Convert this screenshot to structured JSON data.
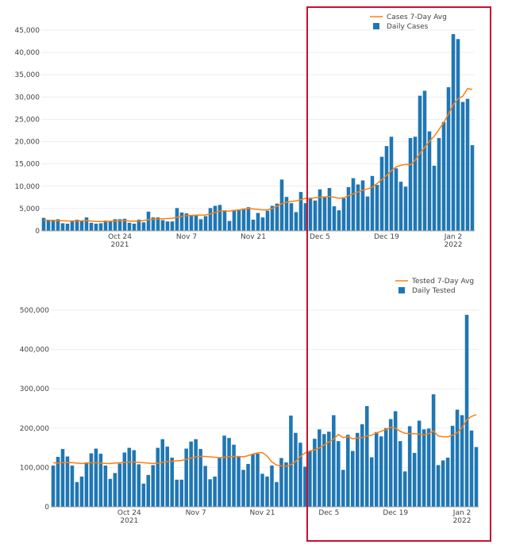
{
  "colors": {
    "bar": "#1f77b4",
    "line": "#ff7f0e",
    "highlight": "#c8102e"
  },
  "chart_data": [
    {
      "type": "bar",
      "x_ticks": [
        {
          "label": "Oct 24",
          "sub": "2021",
          "index": 16
        },
        {
          "label": "Nov 7",
          "sub": "",
          "index": 30
        },
        {
          "label": "Nov 21",
          "sub": "",
          "index": 44
        },
        {
          "label": "Dec 5",
          "sub": "",
          "index": 58
        },
        {
          "label": "Dec 19",
          "sub": "",
          "index": 72
        },
        {
          "label": "Jan 2",
          "sub": "2022",
          "index": 86
        }
      ],
      "y_ticks": [
        "0",
        "5,000",
        "10,000",
        "15,000",
        "20,000",
        "25,000",
        "30,000",
        "35,000",
        "40,000",
        "45,000"
      ],
      "ylim": [
        0,
        45000
      ],
      "legend": {
        "position": "top-right",
        "line_label": "Cases 7-Day Avg",
        "bar_label": "Daily Cases"
      },
      "series": [
        {
          "name": "Daily Cases",
          "kind": "bar",
          "values": [
            2900,
            2300,
            2400,
            2600,
            1700,
            1600,
            2300,
            2500,
            2200,
            3000,
            1800,
            1600,
            1700,
            2300,
            2100,
            2600,
            2600,
            2700,
            1800,
            1600,
            2500,
            1900,
            4300,
            3000,
            3000,
            2400,
            2100,
            2100,
            5100,
            4100,
            3900,
            3500,
            3500,
            2600,
            3300,
            5100,
            5600,
            5800,
            4600,
            2200,
            4700,
            4800,
            5000,
            5300,
            2500,
            4000,
            3000,
            4500,
            5600,
            6100,
            11500,
            7600,
            6200,
            4200,
            8700,
            6200,
            7400,
            6800,
            9300,
            7600,
            9600,
            5500,
            4600,
            7300,
            9800,
            11800,
            10400,
            11300,
            7700,
            12300,
            10300,
            16600,
            19000,
            21100,
            14000,
            11000,
            9900,
            20800,
            21100,
            30300,
            31400,
            22300,
            14600,
            20800,
            24400,
            32200,
            44100,
            43000,
            28900,
            29600,
            19200
          ]
        },
        {
          "name": "Cases 7-Day Avg",
          "kind": "line",
          "values": [
            2400,
            2350,
            2350,
            2300,
            2250,
            2200,
            2200,
            2250,
            2250,
            2300,
            2200,
            2100,
            2100,
            2100,
            2150,
            2200,
            2250,
            2300,
            2200,
            2150,
            2200,
            2300,
            2500,
            2600,
            2650,
            2700,
            2750,
            2800,
            3050,
            3250,
            3400,
            3450,
            3500,
            3500,
            3550,
            3800,
            4100,
            4400,
            4500,
            4400,
            4550,
            4700,
            4850,
            5000,
            4900,
            4800,
            4700,
            4700,
            5000,
            5500,
            6100,
            6400,
            6600,
            6700,
            7000,
            7300,
            7300,
            7400,
            7500,
            7600,
            7700,
            7500,
            7300,
            7400,
            7900,
            8300,
            8700,
            9100,
            9400,
            9800,
            10600,
            11500,
            12400,
            13500,
            14300,
            14700,
            14900,
            14800,
            15800,
            17400,
            18700,
            20100,
            21200,
            22700,
            24300,
            26200,
            28300,
            29600,
            30200,
            31900,
            31700
          ]
        }
      ]
    },
    {
      "type": "bar",
      "x_ticks": [
        {
          "label": "Oct 24",
          "sub": "2021",
          "index": 16
        },
        {
          "label": "Nov 7",
          "sub": "",
          "index": 30
        },
        {
          "label": "Nov 21",
          "sub": "",
          "index": 44
        },
        {
          "label": "Dec 5",
          "sub": "",
          "index": 58
        },
        {
          "label": "Dec 19",
          "sub": "",
          "index": 72
        },
        {
          "label": "Jan 2",
          "sub": "2022",
          "index": 86
        }
      ],
      "y_ticks": [
        "0",
        "100,000",
        "200,000",
        "300,000",
        "400,000",
        "500,000"
      ],
      "ylim": [
        0,
        500000
      ],
      "legend": {
        "position": "top-right",
        "line_label": "Tested 7-Day Avg",
        "bar_label": "Daily Tested"
      },
      "series": [
        {
          "name": "Daily Tested",
          "kind": "bar",
          "values": [
            105000,
            127000,
            147000,
            128000,
            105000,
            63000,
            77000,
            113000,
            136000,
            148000,
            135000,
            105000,
            71000,
            86000,
            110000,
            138000,
            150000,
            144000,
            108000,
            59000,
            81000,
            106000,
            150000,
            172000,
            153000,
            125000,
            69000,
            69000,
            148000,
            166000,
            172000,
            147000,
            104000,
            70000,
            77000,
            125000,
            181000,
            175000,
            158000,
            127000,
            94000,
            109000,
            134000,
            135000,
            84000,
            77000,
            105000,
            63000,
            124000,
            113000,
            232000,
            188000,
            163000,
            102000,
            142000,
            173000,
            197000,
            185000,
            191000,
            233000,
            167000,
            94000,
            183000,
            142000,
            188000,
            210000,
            256000,
            126000,
            190000,
            179000,
            200000,
            223000,
            243000,
            167000,
            90000,
            205000,
            137000,
            219000,
            197000,
            199000,
            286000,
            106000,
            118000,
            125000,
            206000,
            247000,
            233000,
            488000,
            194000,
            152000
          ]
        },
        {
          "name": "Tested 7-Day Avg",
          "kind": "line",
          "values": [
            112000,
            111000,
            112000,
            113000,
            112000,
            111000,
            110000,
            111000,
            112000,
            112000,
            111000,
            110000,
            110000,
            111000,
            112000,
            113000,
            114000,
            114000,
            113000,
            112000,
            111000,
            110000,
            111000,
            113000,
            115000,
            116000,
            117000,
            118000,
            121000,
            124000,
            127000,
            128000,
            128000,
            127000,
            126000,
            125000,
            126000,
            127000,
            128000,
            128000,
            127000,
            130000,
            134000,
            137000,
            138000,
            129000,
            114000,
            106000,
            104000,
            103000,
            107000,
            115000,
            128000,
            137000,
            142000,
            145000,
            150000,
            157000,
            165000,
            172000,
            184000,
            176000,
            178000,
            173000,
            175000,
            176000,
            180000,
            182000,
            188000,
            192000,
            197000,
            202000,
            200000,
            192000,
            187000,
            186000,
            186000,
            185000,
            183000,
            186000,
            193000,
            180000,
            178000,
            178000,
            182000,
            188000,
            201000,
            221000,
            230000,
            234000
          ]
        }
      ]
    }
  ]
}
